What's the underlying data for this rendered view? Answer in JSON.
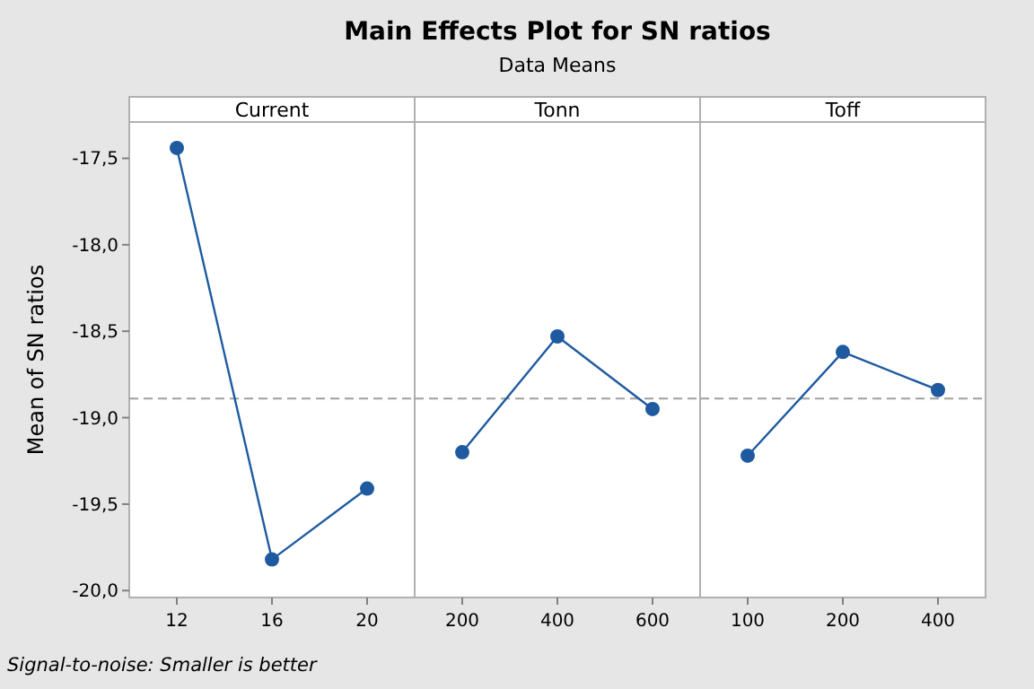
{
  "chart_data": [
    {
      "type": "line",
      "xlabel": "Current",
      "ylabel": "Mean of SN ratios",
      "categories": [
        "12",
        "16",
        "20"
      ],
      "series": [
        {
          "color": "#1f5aa0",
          "values": [
            -17.44,
            -19.82,
            -19.41
          ]
        }
      ],
      "marker": "circle",
      "ylim": [
        -20.04,
        -17.29
      ],
      "yticks": [
        {
          "value": -20,
          "label": "-20,0"
        },
        {
          "value": -19.5,
          "label": "-19,5"
        },
        {
          "value": -19,
          "label": "-19,0"
        },
        {
          "value": -18.5,
          "label": "-18,5"
        },
        {
          "value": -18,
          "label": "-18,0"
        },
        {
          "value": -17.5,
          "label": "-17,5"
        }
      ],
      "ref_lines": [
        {
          "axis": "y",
          "value": -18.89,
          "color": "#a0a0a0",
          "line_style": "dashed"
        }
      ],
      "annotations": [
        "Signal-to-noise: Smaller is better"
      ]
    },
    {
      "type": "line",
      "title": "Main Effects Plot for SN ratios",
      "subtitle": "Data Means",
      "xlabel": "Tonn",
      "categories": [
        "200",
        "400",
        "600"
      ],
      "series": [
        {
          "color": "#1f5aa0",
          "values": [
            -19.2,
            -18.53,
            -18.95
          ]
        }
      ],
      "marker": "circle",
      "ylim": [
        -20.04,
        -17.29
      ],
      "tick_labels": "x",
      "ref_lines": [
        {
          "axis": "y",
          "value": -18.89,
          "color": "#a0a0a0",
          "line_style": "dashed"
        }
      ]
    },
    {
      "type": "line",
      "xlabel": "Toff",
      "categories": [
        "100",
        "200",
        "400"
      ],
      "series": [
        {
          "color": "#1f5aa0",
          "values": [
            -19.22,
            -18.62,
            -18.84
          ]
        }
      ],
      "marker": "circle",
      "ylim": [
        -20.04,
        -17.29
      ],
      "tick_labels": "x",
      "ref_lines": [
        {
          "axis": "y",
          "value": -18.89,
          "color": "#a0a0a0",
          "line_style": "dashed"
        }
      ]
    }
  ]
}
